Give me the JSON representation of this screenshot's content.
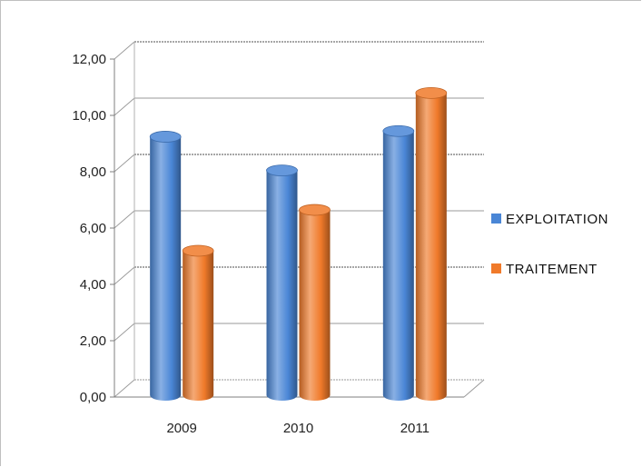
{
  "chart_data": {
    "type": "bar",
    "categories": [
      "2009",
      "2010",
      "2011"
    ],
    "series": [
      {
        "name": "EXPLOITATION",
        "values": [
          9.05,
          7.85,
          9.25
        ],
        "color": "#4a86d6"
      },
      {
        "name": "TRAITEMENT",
        "values": [
          5.0,
          6.45,
          10.6
        ],
        "color": "#f07a2a"
      }
    ],
    "title": "",
    "xlabel": "",
    "ylabel": "",
    "ylim": [
      0,
      12
    ],
    "yticks": [
      0,
      2,
      4,
      6,
      8,
      10,
      12
    ],
    "ytick_labels": [
      "0,00",
      "2,00",
      "4,00",
      "6,00",
      "8,00",
      "10,00",
      "12,00"
    ],
    "grid": true,
    "style": "3d-cylinder",
    "legend_position": "right"
  }
}
